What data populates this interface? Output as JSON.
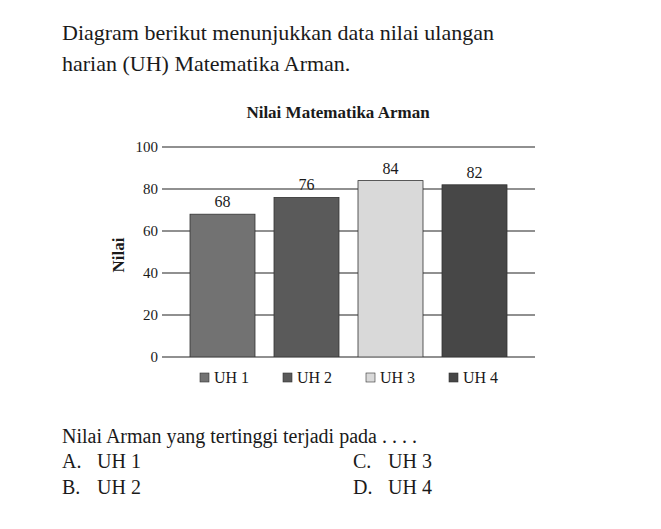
{
  "intro": [
    "Diagram berikut menunjukkan data nilai ulangan",
    "harian (UH) Matematika Arman."
  ],
  "chart_data": {
    "type": "bar",
    "title": "Nilai Matematika Arman",
    "y_label": "Nilai",
    "categories": [
      "UH 1",
      "UH 2",
      "UH 3",
      "UH 4"
    ],
    "values": [
      68,
      76,
      84,
      82
    ],
    "colors": [
      "#727272",
      "#5a5a5a",
      "#d9d9d9",
      "#474747"
    ],
    "ylim": [
      0,
      100
    ],
    "yticks": [
      0,
      20,
      40,
      60,
      80,
      100
    ],
    "grid": true,
    "data_labels": true,
    "legend": "bottom",
    "tick_labels": "y"
  },
  "question": "Nilai Arman yang tertinggi terjadi pada . . . .",
  "options": [
    {
      "letter": "A.",
      "text": "UH 1"
    },
    {
      "letter": "B.",
      "text": "UH 2"
    },
    {
      "letter": "C.",
      "text": "UH 3"
    },
    {
      "letter": "D.",
      "text": "UH 4"
    }
  ]
}
